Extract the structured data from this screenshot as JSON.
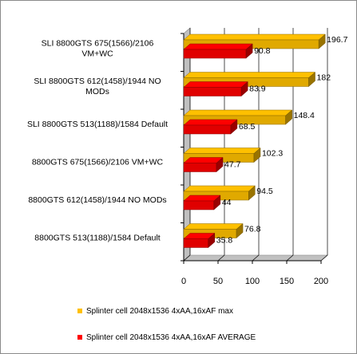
{
  "chart_data": {
    "type": "bar",
    "orientation": "horizontal",
    "style": "3d",
    "categories": [
      [
        "SLI 8800GTS 675(1566)/2106",
        "VM+WC"
      ],
      [
        "SLI 8800GTS 612(1458)/1944 NO",
        "MODs"
      ],
      [
        "SLI 8800GTS 513(1188)/1584 Default"
      ],
      [
        "8800GTS 675(1566)/2106 VM+WC"
      ],
      [
        "8800GTS 612(1458)/1944 NO MODs"
      ],
      [
        "8800GTS 513(1188)/1584 Default"
      ]
    ],
    "series": [
      {
        "name": "Splinter cell 2048x1536 4xAA,16xAF max",
        "color": "#ffc000",
        "values": [
          196.7,
          182,
          148.4,
          102.3,
          94.5,
          76.8
        ]
      },
      {
        "name": "Splinter cell 2048x1536 4xAA,16xAF AVERAGE",
        "color": "#ff0000",
        "values": [
          90.8,
          83.9,
          68.5,
          47.7,
          44,
          35.8
        ]
      }
    ],
    "xlim": [
      0,
      200
    ],
    "xticks": [
      0,
      50,
      100,
      150,
      200
    ],
    "grid": true,
    "legend_position": "bottom"
  }
}
